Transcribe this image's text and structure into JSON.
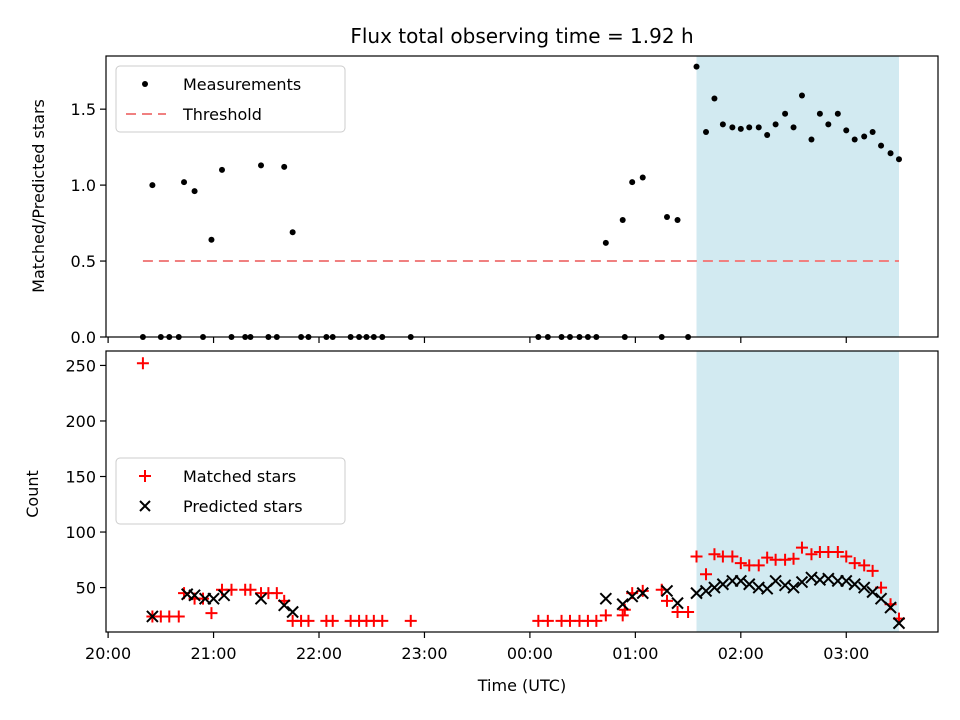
{
  "title": "Flux total observing time = 1.92 h",
  "colors": {
    "measurement": "#000000",
    "threshold": "#f08080",
    "matched": "#ff0000",
    "predicted": "#000000",
    "observing_window": "#add8e6"
  },
  "chart_data": [
    {
      "type": "scatter",
      "ylabel": "Matched/Predicted stars",
      "ylim": [
        0,
        1.85
      ],
      "yticks": [
        "0.0",
        "0.5",
        "1.0",
        "1.5"
      ],
      "yticks_values": [
        0,
        0.5,
        1.0,
        1.5
      ],
      "legend": [
        "Measurements",
        "Threshold"
      ],
      "legend_position": "upper-left",
      "threshold": 0.5,
      "threshold_range": [
        20.33,
        27.5
      ],
      "observing_window": [
        25.58,
        27.5
      ],
      "series": [
        {
          "name": "Measurements",
          "points": [
            [
              20.33,
              0
            ],
            [
              20.42,
              1.0
            ],
            [
              20.5,
              0
            ],
            [
              20.58,
              0
            ],
            [
              20.67,
              0
            ],
            [
              20.72,
              1.02
            ],
            [
              20.82,
              0.96
            ],
            [
              20.9,
              0
            ],
            [
              20.98,
              0.64
            ],
            [
              21.08,
              1.1
            ],
            [
              21.17,
              0
            ],
            [
              21.3,
              0
            ],
            [
              21.35,
              0
            ],
            [
              21.45,
              1.13
            ],
            [
              21.52,
              0
            ],
            [
              21.6,
              0
            ],
            [
              21.67,
              1.12
            ],
            [
              21.75,
              0.69
            ],
            [
              21.83,
              0
            ],
            [
              21.9,
              0
            ],
            [
              22.07,
              0
            ],
            [
              22.13,
              0
            ],
            [
              22.3,
              0
            ],
            [
              22.38,
              0
            ],
            [
              22.45,
              0
            ],
            [
              22.52,
              0
            ],
            [
              22.6,
              0
            ],
            [
              22.87,
              0
            ],
            [
              24.08,
              0
            ],
            [
              24.17,
              0
            ],
            [
              24.3,
              0
            ],
            [
              24.38,
              0
            ],
            [
              24.47,
              0
            ],
            [
              24.55,
              0
            ],
            [
              24.63,
              0
            ],
            [
              24.72,
              0.62
            ],
            [
              24.88,
              0.77
            ],
            [
              24.9,
              0
            ],
            [
              24.97,
              1.02
            ],
            [
              25.07,
              1.05
            ],
            [
              25.25,
              0
            ],
            [
              25.3,
              0.79
            ],
            [
              25.4,
              0.77
            ],
            [
              25.5,
              0
            ],
            [
              25.58,
              1.78
            ],
            [
              25.67,
              1.35
            ],
            [
              25.75,
              1.57
            ],
            [
              25.83,
              1.4
            ],
            [
              25.92,
              1.38
            ],
            [
              26.0,
              1.37
            ],
            [
              26.08,
              1.38
            ],
            [
              26.17,
              1.38
            ],
            [
              26.25,
              1.33
            ],
            [
              26.33,
              1.4
            ],
            [
              26.42,
              1.47
            ],
            [
              26.5,
              1.38
            ],
            [
              26.58,
              1.59
            ],
            [
              26.67,
              1.3
            ],
            [
              26.75,
              1.47
            ],
            [
              26.83,
              1.4
            ],
            [
              26.92,
              1.47
            ],
            [
              27.0,
              1.36
            ],
            [
              27.08,
              1.3
            ],
            [
              27.17,
              1.32
            ],
            [
              27.25,
              1.35
            ],
            [
              27.33,
              1.26
            ],
            [
              27.42,
              1.21
            ],
            [
              27.5,
              1.17
            ]
          ]
        }
      ]
    },
    {
      "type": "scatter",
      "xlabel": "Time (UTC)",
      "ylabel": "Count",
      "xlim": [
        19.98,
        27.87
      ],
      "xticks": [
        "20:00",
        "21:00",
        "22:00",
        "23:00",
        "00:00",
        "01:00",
        "02:00",
        "03:00"
      ],
      "xticks_values": [
        20,
        21,
        22,
        23,
        24,
        25,
        26,
        27
      ],
      "ylim": [
        10,
        263
      ],
      "yticks": [
        "50",
        "100",
        "150",
        "200",
        "250"
      ],
      "yticks_values": [
        50,
        100,
        150,
        200,
        250
      ],
      "legend": [
        "Matched stars",
        "Predicted stars"
      ],
      "legend_position": "center-left",
      "observing_window": [
        25.58,
        27.5
      ],
      "series": [
        {
          "name": "Matched stars",
          "points": [
            [
              20.33,
              252
            ],
            [
              20.42,
              24
            ],
            [
              20.5,
              24
            ],
            [
              20.58,
              24
            ],
            [
              20.67,
              24
            ],
            [
              20.72,
              45
            ],
            [
              20.82,
              40
            ],
            [
              20.9,
              40
            ],
            [
              20.98,
              27
            ],
            [
              21.08,
              48
            ],
            [
              21.17,
              48
            ],
            [
              21.3,
              48
            ],
            [
              21.35,
              48
            ],
            [
              21.45,
              45
            ],
            [
              21.52,
              45
            ],
            [
              21.6,
              45
            ],
            [
              21.67,
              38
            ],
            [
              21.75,
              20
            ],
            [
              21.83,
              20
            ],
            [
              21.9,
              20
            ],
            [
              22.07,
              20
            ],
            [
              22.13,
              20
            ],
            [
              22.3,
              20
            ],
            [
              22.38,
              20
            ],
            [
              22.45,
              20
            ],
            [
              22.52,
              20
            ],
            [
              22.6,
              20
            ],
            [
              22.87,
              20
            ],
            [
              24.08,
              20
            ],
            [
              24.17,
              20
            ],
            [
              24.3,
              20
            ],
            [
              24.38,
              20
            ],
            [
              24.47,
              20
            ],
            [
              24.55,
              20
            ],
            [
              24.63,
              20
            ],
            [
              24.72,
              25
            ],
            [
              24.88,
              25
            ],
            [
              24.9,
              30
            ],
            [
              24.97,
              45
            ],
            [
              25.07,
              47
            ],
            [
              25.25,
              48
            ],
            [
              25.3,
              38
            ],
            [
              25.4,
              28
            ],
            [
              25.5,
              28
            ],
            [
              25.58,
              78
            ],
            [
              25.67,
              62
            ],
            [
              25.75,
              80
            ],
            [
              25.83,
              78
            ],
            [
              25.92,
              78
            ],
            [
              26.0,
              72
            ],
            [
              26.08,
              70
            ],
            [
              26.17,
              70
            ],
            [
              26.25,
              77
            ],
            [
              26.33,
              75
            ],
            [
              26.42,
              75
            ],
            [
              26.5,
              76
            ],
            [
              26.58,
              86
            ],
            [
              26.67,
              80
            ],
            [
              26.75,
              82
            ],
            [
              26.83,
              82
            ],
            [
              26.92,
              82
            ],
            [
              27.0,
              78
            ],
            [
              27.08,
              72
            ],
            [
              27.17,
              70
            ],
            [
              27.25,
              65
            ],
            [
              27.33,
              50
            ],
            [
              27.42,
              35
            ],
            [
              27.5,
              22
            ]
          ]
        },
        {
          "name": "Predicted stars",
          "points": [
            [
              20.42,
              24
            ],
            [
              20.75,
              44
            ],
            [
              20.82,
              43
            ],
            [
              20.92,
              40
            ],
            [
              21.0,
              40
            ],
            [
              21.1,
              43
            ],
            [
              21.45,
              40
            ],
            [
              21.67,
              34
            ],
            [
              21.75,
              28
            ],
            [
              24.72,
              40
            ],
            [
              24.88,
              35
            ],
            [
              24.97,
              42
            ],
            [
              25.07,
              45
            ],
            [
              25.3,
              47
            ],
            [
              25.4,
              36
            ],
            [
              25.58,
              45
            ],
            [
              25.67,
              47
            ],
            [
              25.75,
              50
            ],
            [
              25.83,
              53
            ],
            [
              25.92,
              56
            ],
            [
              26.0,
              56
            ],
            [
              26.08,
              53
            ],
            [
              26.17,
              50
            ],
            [
              26.25,
              49
            ],
            [
              26.33,
              56
            ],
            [
              26.42,
              52
            ],
            [
              26.5,
              50
            ],
            [
              26.58,
              55
            ],
            [
              26.67,
              59
            ],
            [
              26.75,
              57
            ],
            [
              26.83,
              58
            ],
            [
              26.92,
              56
            ],
            [
              27.0,
              56
            ],
            [
              27.08,
              53
            ],
            [
              27.17,
              50
            ],
            [
              27.25,
              46
            ],
            [
              27.33,
              40
            ],
            [
              27.42,
              32
            ],
            [
              27.5,
              18
            ]
          ]
        }
      ]
    }
  ]
}
